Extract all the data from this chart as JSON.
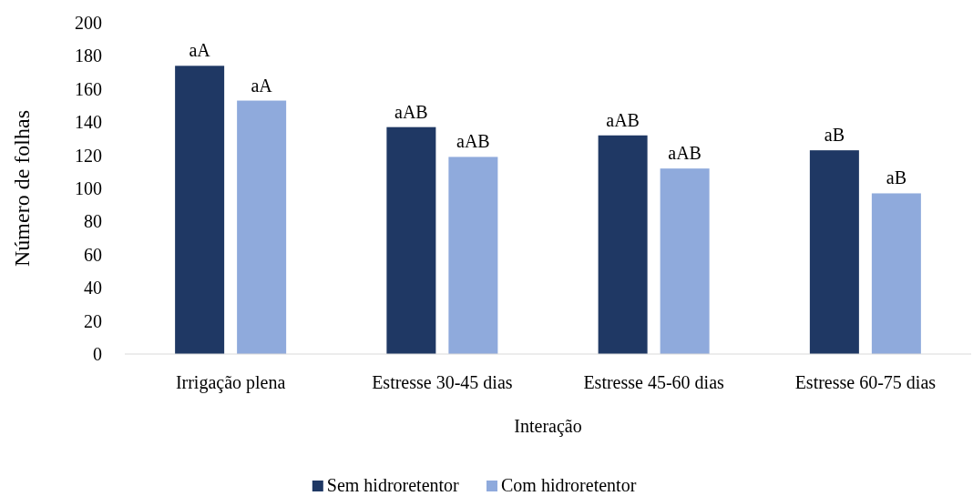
{
  "chart_data": {
    "type": "bar",
    "xlabel": "Interação",
    "ylabel": "Número de folhas",
    "categories": [
      "Irrigação plena",
      "Estresse 30-45 dias",
      "Estresse 45-60 dias",
      "Estresse 60-75 dias"
    ],
    "series": [
      {
        "name": "Sem hidroretentor",
        "color": "#1f3864",
        "values": [
          174,
          137,
          132,
          123
        ],
        "value_labels": [
          "aA",
          "aAB",
          "aAB",
          "aB"
        ]
      },
      {
        "name": "Com hidroretentor",
        "color": "#8faadc",
        "values": [
          153,
          119,
          112,
          97
        ],
        "value_labels": [
          "aA",
          "aAB",
          "aAB",
          "aB"
        ]
      }
    ],
    "ylim": [
      0,
      200
    ],
    "yticks": [
      0,
      20,
      40,
      60,
      80,
      100,
      120,
      140,
      160,
      180,
      200
    ],
    "grid": false,
    "legend": "bottom"
  }
}
